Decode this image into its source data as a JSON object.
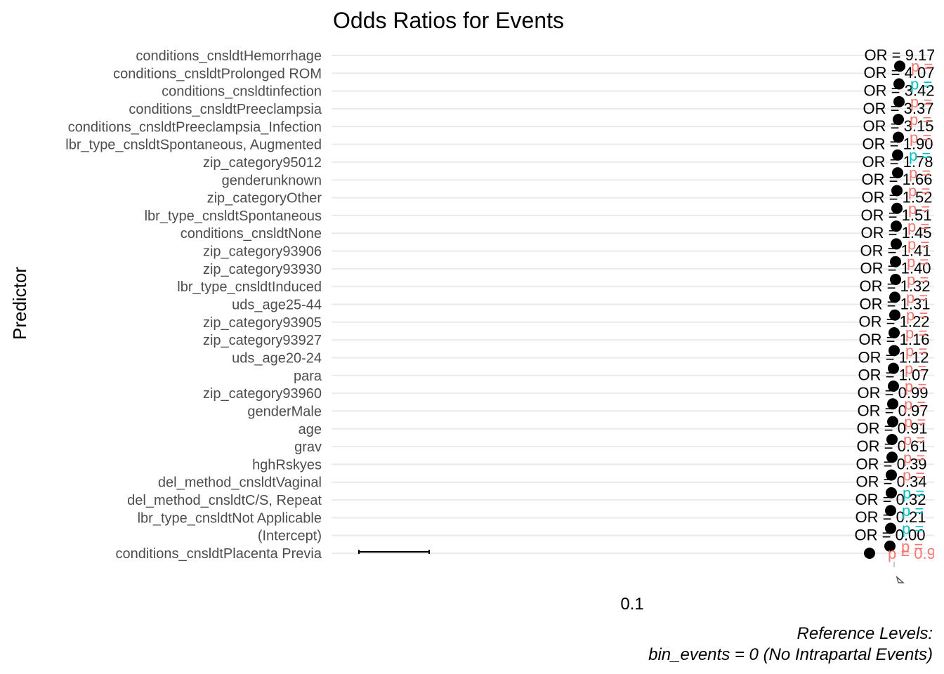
{
  "chart_data": {
    "type": "scatter",
    "title": "Odds Ratios for Events",
    "ylabel": "Predictor",
    "x_ticks": [
      "0.1"
    ],
    "x_scale": "log",
    "grid": "horizontal",
    "caption_line1": "Reference Levels:",
    "caption_line2": "bin_events = 0 (No Intrapartal Events)",
    "colors": {
      "point": "#000000",
      "p_significant": "#00BFC4",
      "p_not_significant": "#F8766D",
      "grid": "#ebebeb",
      "label": "#4d4d4d"
    },
    "rows": [
      {
        "predictor": "conditions_cnsldtHemorrhage",
        "or_label": "OR = 9.17",
        "p_label": "p =",
        "sig": false
      },
      {
        "predictor": "conditions_cnsldtProlonged ROM",
        "or_label": "OR = 4.07",
        "p_label": "p =",
        "sig": true
      },
      {
        "predictor": "conditions_cnsldtinfection",
        "or_label": "OR = 3.42",
        "p_label": "p =",
        "sig": false
      },
      {
        "predictor": "conditions_cnsldtPreeclampsia",
        "or_label": "OR = 3.37",
        "p_label": "p =",
        "sig": false
      },
      {
        "predictor": "conditions_cnsldtPreeclampsia_Infection",
        "or_label": "OR = 3.15",
        "p_label": "p =",
        "sig": false
      },
      {
        "predictor": "lbr_type_cnsldtSpontaneous, Augmented",
        "or_label": "OR = 1.90",
        "p_label": "p =",
        "sig": true
      },
      {
        "predictor": "zip_category95012",
        "or_label": "OR = 1.78",
        "p_label": "p =",
        "sig": false
      },
      {
        "predictor": "genderunknown",
        "or_label": "OR = 1.66",
        "p_label": "p =",
        "sig": false
      },
      {
        "predictor": "zip_categoryOther",
        "or_label": "OR = 1.52",
        "p_label": "p =",
        "sig": false
      },
      {
        "predictor": "lbr_type_cnsldtSpontaneous",
        "or_label": "OR = 1.51",
        "p_label": "p =",
        "sig": false
      },
      {
        "predictor": "conditions_cnsldtNone",
        "or_label": "OR = 1.45",
        "p_label": "p =",
        "sig": false
      },
      {
        "predictor": "zip_category93906",
        "or_label": "OR = 1.41",
        "p_label": "p =",
        "sig": false
      },
      {
        "predictor": "zip_category93930",
        "or_label": "OR = 1.40",
        "p_label": "p =",
        "sig": false
      },
      {
        "predictor": "lbr_type_cnsldtInduced",
        "or_label": "OR = 1.32",
        "p_label": "p =",
        "sig": false
      },
      {
        "predictor": "uds_age25-44",
        "or_label": "OR = 1.31",
        "p_label": "p =",
        "sig": false
      },
      {
        "predictor": "zip_category93905",
        "or_label": "OR = 1.22",
        "p_label": "p =",
        "sig": false
      },
      {
        "predictor": "zip_category93927",
        "or_label": "OR = 1.16",
        "p_label": "p =",
        "sig": false
      },
      {
        "predictor": "uds_age20-24",
        "or_label": "OR = 1.12",
        "p_label": "p =",
        "sig": false
      },
      {
        "predictor": "para",
        "or_label": "OR = 1.07",
        "p_label": "p =",
        "sig": false
      },
      {
        "predictor": "zip_category93960",
        "or_label": "OR = 0.99",
        "p_label": "p =",
        "sig": false
      },
      {
        "predictor": "genderMale",
        "or_label": "OR = 0.97",
        "p_label": "p =",
        "sig": false
      },
      {
        "predictor": "age",
        "or_label": "OR = 0.91",
        "p_label": "p =",
        "sig": false
      },
      {
        "predictor": "grav",
        "or_label": "OR = 0.61",
        "p_label": "p =",
        "sig": false
      },
      {
        "predictor": "hghRskyes",
        "or_label": "OR = 0.39",
        "p_label": "p =",
        "sig": false
      },
      {
        "predictor": "del_method_cnsldtVaginal",
        "or_label": "OR = 0.34",
        "p_label": "p =",
        "sig": true
      },
      {
        "predictor": "del_method_cnsldtC/S, Repeat",
        "or_label": "OR = 0.32",
        "p_label": "p =",
        "sig": true
      },
      {
        "predictor": "lbr_type_cnsldtNot Applicable",
        "or_label": "OR = 0.21",
        "p_label": "p =",
        "sig": true
      },
      {
        "predictor": "(Intercept)",
        "or_label": "OR = 0.00",
        "p_label": "p =",
        "sig": false
      },
      {
        "predictor": "conditions_cnsldtPlacenta Previa",
        "or_label": "",
        "p_label": "p = 0.9",
        "sig": false
      }
    ]
  }
}
